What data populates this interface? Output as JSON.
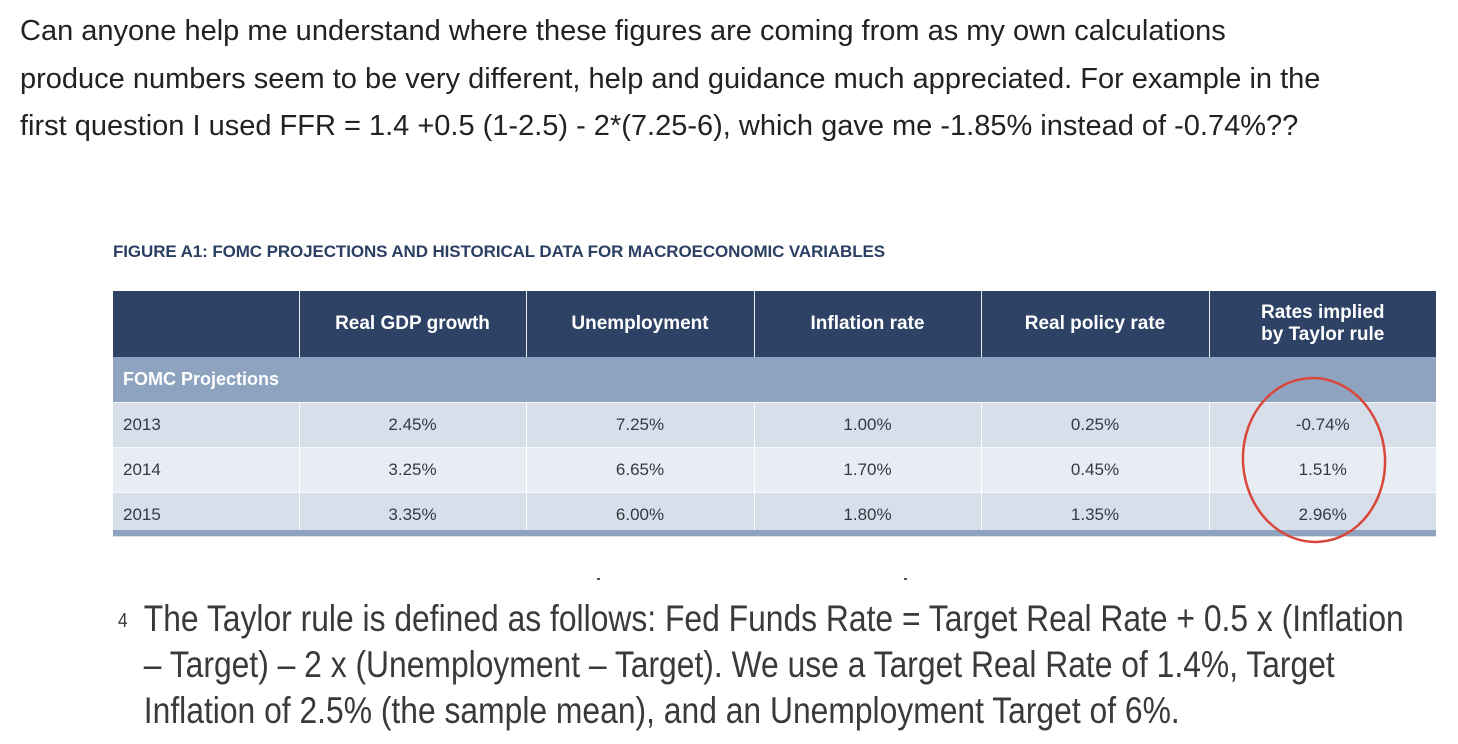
{
  "question": {
    "lines": [
      "Can anyone help me understand where these figures are coming from as my own calculations",
      "produce numbers seem to be very different, help and guidance much appreciated. For example in the",
      "first question I used FFR = 1.4 +0.5 (1-2.5) - 2*(7.25-6), which gave me -1.85% instead of -0.74%??"
    ]
  },
  "figure": {
    "title": "FIGURE A1: FOMC PROJECTIONS AND HISTORICAL DATA FOR MACROECONOMIC VARIABLES",
    "headers": [
      "",
      "Real GDP growth",
      "Unemployment",
      "Inflation rate",
      "Real policy rate",
      "Rates implied by Taylor rule"
    ],
    "section_label": "FOMC Projections",
    "rows": [
      [
        "2013",
        "2.45%",
        "7.25%",
        "1.00%",
        "0.25%",
        "-0.74%"
      ],
      [
        "2014",
        "3.25%",
        "6.65%",
        "1.70%",
        "0.45%",
        "1.51%"
      ],
      [
        "2015",
        "3.35%",
        "6.00%",
        "1.80%",
        "1.35%",
        "2.96%"
      ]
    ],
    "highlight_color": "#d9473a"
  },
  "footnote": {
    "number": "4",
    "lines": [
      "The Taylor rule is defined as follows:  Fed Funds Rate = Target Real Rate + 0.5 x (Inflation",
      "– Target) – 2 x (Unemployment – Target). We use a Target Real Rate of 1.4%, Target",
      "Inflation of 2.5% (the sample mean), and an Unemployment Target of 6%."
    ]
  }
}
